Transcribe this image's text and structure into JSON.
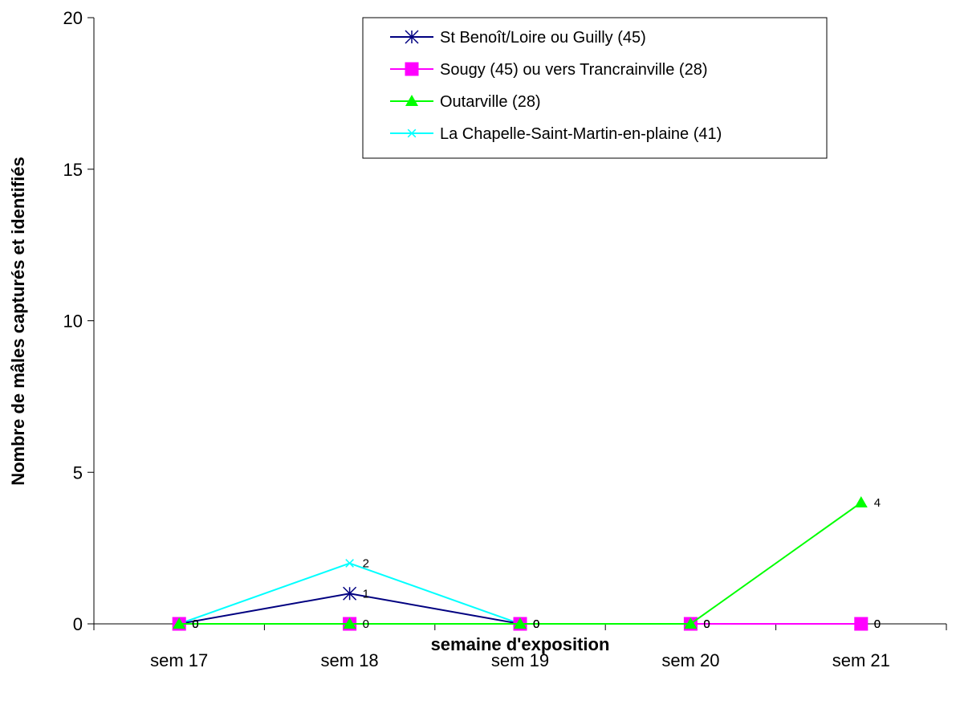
{
  "chart_data": {
    "type": "line",
    "title": "",
    "xlabel": "semaine d'exposition",
    "ylabel": "Nombre de mâles capturés et identifiés",
    "categories": [
      "sem 17",
      "sem 18",
      "sem 19",
      "sem 20",
      "sem 21"
    ],
    "ylim": [
      0,
      20
    ],
    "yticks": [
      "0",
      "5",
      "10",
      "15",
      "20"
    ],
    "grid": false,
    "legend_position": "top-right",
    "series": [
      {
        "name": "St Benoît/Loire ou Guilly (45)",
        "color": "#000080",
        "marker": "asterisk",
        "values": [
          0,
          1,
          0,
          0,
          0
        ],
        "labels": [
          "0",
          "1",
          "0",
          "0",
          "0"
        ]
      },
      {
        "name": "Sougy (45) ou vers Trancrainville (28)",
        "color": "#ff00ff",
        "marker": "square",
        "values": [
          0,
          0,
          0,
          0,
          0
        ],
        "labels": [
          "0",
          "",
          "0",
          "0",
          "0"
        ]
      },
      {
        "name": "Outarville (28)",
        "color": "#00ff00",
        "marker": "triangle",
        "values": [
          0,
          0,
          0,
          0,
          4
        ],
        "labels": [
          "0",
          "0",
          "0",
          "0",
          "4"
        ]
      },
      {
        "name": "La Chapelle-Saint-Martin-en-plaine  (41)",
        "color": "#00ffff",
        "marker": "x",
        "values": [
          0,
          2,
          0,
          0,
          0
        ],
        "labels": [
          "0",
          "2",
          "0",
          "0",
          "0"
        ]
      }
    ]
  }
}
